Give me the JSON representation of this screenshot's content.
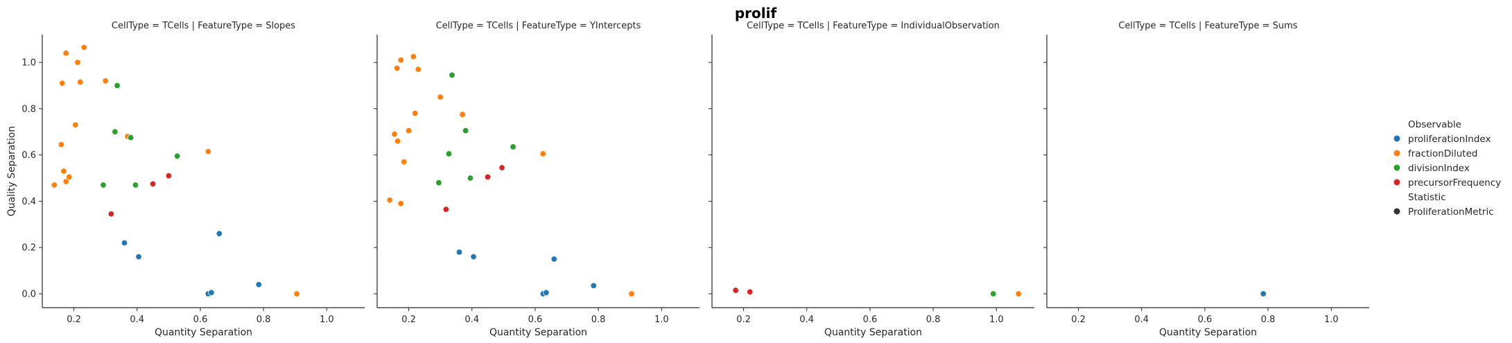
{
  "figure_title": "prolif",
  "chart_data": {
    "type": "scatter",
    "title": "prolif",
    "xlabel": "Quantity Separation",
    "ylabel": "Quality Separation",
    "xlim": [
      0.1,
      1.12
    ],
    "ylim": [
      -0.06,
      1.12
    ],
    "x_ticks": [
      0.2,
      0.4,
      0.6,
      0.8,
      1.0
    ],
    "y_ticks": [
      0.0,
      0.2,
      0.4,
      0.6,
      0.8,
      1.0
    ],
    "x_tick_labels": [
      "0.2",
      "0.4",
      "0.6",
      "0.8",
      "1.0"
    ],
    "y_tick_labels": [
      "0.0",
      "0.2",
      "0.4",
      "0.6",
      "0.8",
      "1.0"
    ],
    "sharey": true,
    "grid": false,
    "legend_position": "right",
    "legend": {
      "hue_title": "Observable",
      "style_title": "Statistic",
      "style_entry": "ProliferationMetric",
      "style_color": "#333333"
    },
    "series_colors": {
      "proliferationIndex": "#1f77b4",
      "fractionDiluted": "#ff7f0e",
      "divisionIndex": "#2ca02c",
      "precursorFrequency": "#d62728"
    },
    "series_order": [
      "proliferationIndex",
      "fractionDiluted",
      "divisionIndex",
      "precursorFrequency"
    ],
    "panels": [
      {
        "title": "CellType = TCells | FeatureType = Slopes",
        "series": [
          {
            "name": "proliferationIndex",
            "points": [
              [
                0.36,
                0.22
              ],
              [
                0.405,
                0.16
              ],
              [
                0.66,
                0.26
              ],
              [
                0.625,
                0.0
              ],
              [
                0.635,
                0.005
              ],
              [
                0.785,
                0.04
              ]
            ]
          },
          {
            "name": "fractionDiluted",
            "points": [
              [
                0.175,
                1.04
              ],
              [
                0.232,
                1.065
              ],
              [
                0.212,
                1.0
              ],
              [
                0.163,
                0.91
              ],
              [
                0.22,
                0.915
              ],
              [
                0.3,
                0.92
              ],
              [
                0.205,
                0.73
              ],
              [
                0.16,
                0.645
              ],
              [
                0.37,
                0.68
              ],
              [
                0.625,
                0.615
              ],
              [
                0.168,
                0.53
              ],
              [
                0.185,
                0.505
              ],
              [
                0.175,
                0.485
              ],
              [
                0.138,
                0.47
              ],
              [
                0.905,
                0.0
              ]
            ]
          },
          {
            "name": "divisionIndex",
            "points": [
              [
                0.337,
                0.9
              ],
              [
                0.33,
                0.7
              ],
              [
                0.38,
                0.675
              ],
              [
                0.527,
                0.595
              ],
              [
                0.293,
                0.47
              ],
              [
                0.395,
                0.47
              ]
            ]
          },
          {
            "name": "precursorFrequency",
            "points": [
              [
                0.318,
                0.345
              ],
              [
                0.45,
                0.475
              ],
              [
                0.5,
                0.51
              ]
            ]
          }
        ]
      },
      {
        "title": "CellType = TCells | FeatureType = YIntercepts",
        "series": [
          {
            "name": "proliferationIndex",
            "points": [
              [
                0.36,
                0.18
              ],
              [
                0.405,
                0.16
              ],
              [
                0.66,
                0.15
              ],
              [
                0.625,
                0.0
              ],
              [
                0.635,
                0.005
              ],
              [
                0.785,
                0.035
              ]
            ]
          },
          {
            "name": "fractionDiluted",
            "points": [
              [
                0.215,
                1.025
              ],
              [
                0.175,
                1.01
              ],
              [
                0.163,
                0.975
              ],
              [
                0.23,
                0.97
              ],
              [
                0.3,
                0.85
              ],
              [
                0.37,
                0.775
              ],
              [
                0.22,
                0.78
              ],
              [
                0.2,
                0.705
              ],
              [
                0.155,
                0.69
              ],
              [
                0.165,
                0.66
              ],
              [
                0.625,
                0.605
              ],
              [
                0.185,
                0.57
              ],
              [
                0.14,
                0.405
              ],
              [
                0.175,
                0.39
              ],
              [
                0.905,
                0.0
              ]
            ]
          },
          {
            "name": "divisionIndex",
            "points": [
              [
                0.337,
                0.945
              ],
              [
                0.38,
                0.705
              ],
              [
                0.53,
                0.635
              ],
              [
                0.327,
                0.605
              ],
              [
                0.395,
                0.5
              ],
              [
                0.295,
                0.48
              ]
            ]
          },
          {
            "name": "precursorFrequency",
            "points": [
              [
                0.318,
                0.365
              ],
              [
                0.45,
                0.505
              ],
              [
                0.495,
                0.545
              ]
            ]
          }
        ]
      },
      {
        "title": "CellType = TCells | FeatureType = IndividualObservation",
        "series": [
          {
            "name": "fractionDiluted",
            "points": [
              [
                1.07,
                0.0
              ]
            ]
          },
          {
            "name": "divisionIndex",
            "points": [
              [
                0.99,
                0.0
              ]
            ]
          },
          {
            "name": "precursorFrequency",
            "points": [
              [
                0.175,
                0.015
              ],
              [
                0.22,
                0.008
              ]
            ]
          }
        ]
      },
      {
        "title": "CellType = TCells | FeatureType = Sums",
        "series": [
          {
            "name": "proliferationIndex",
            "points": [
              [
                0.785,
                0.0
              ]
            ]
          }
        ]
      }
    ]
  }
}
